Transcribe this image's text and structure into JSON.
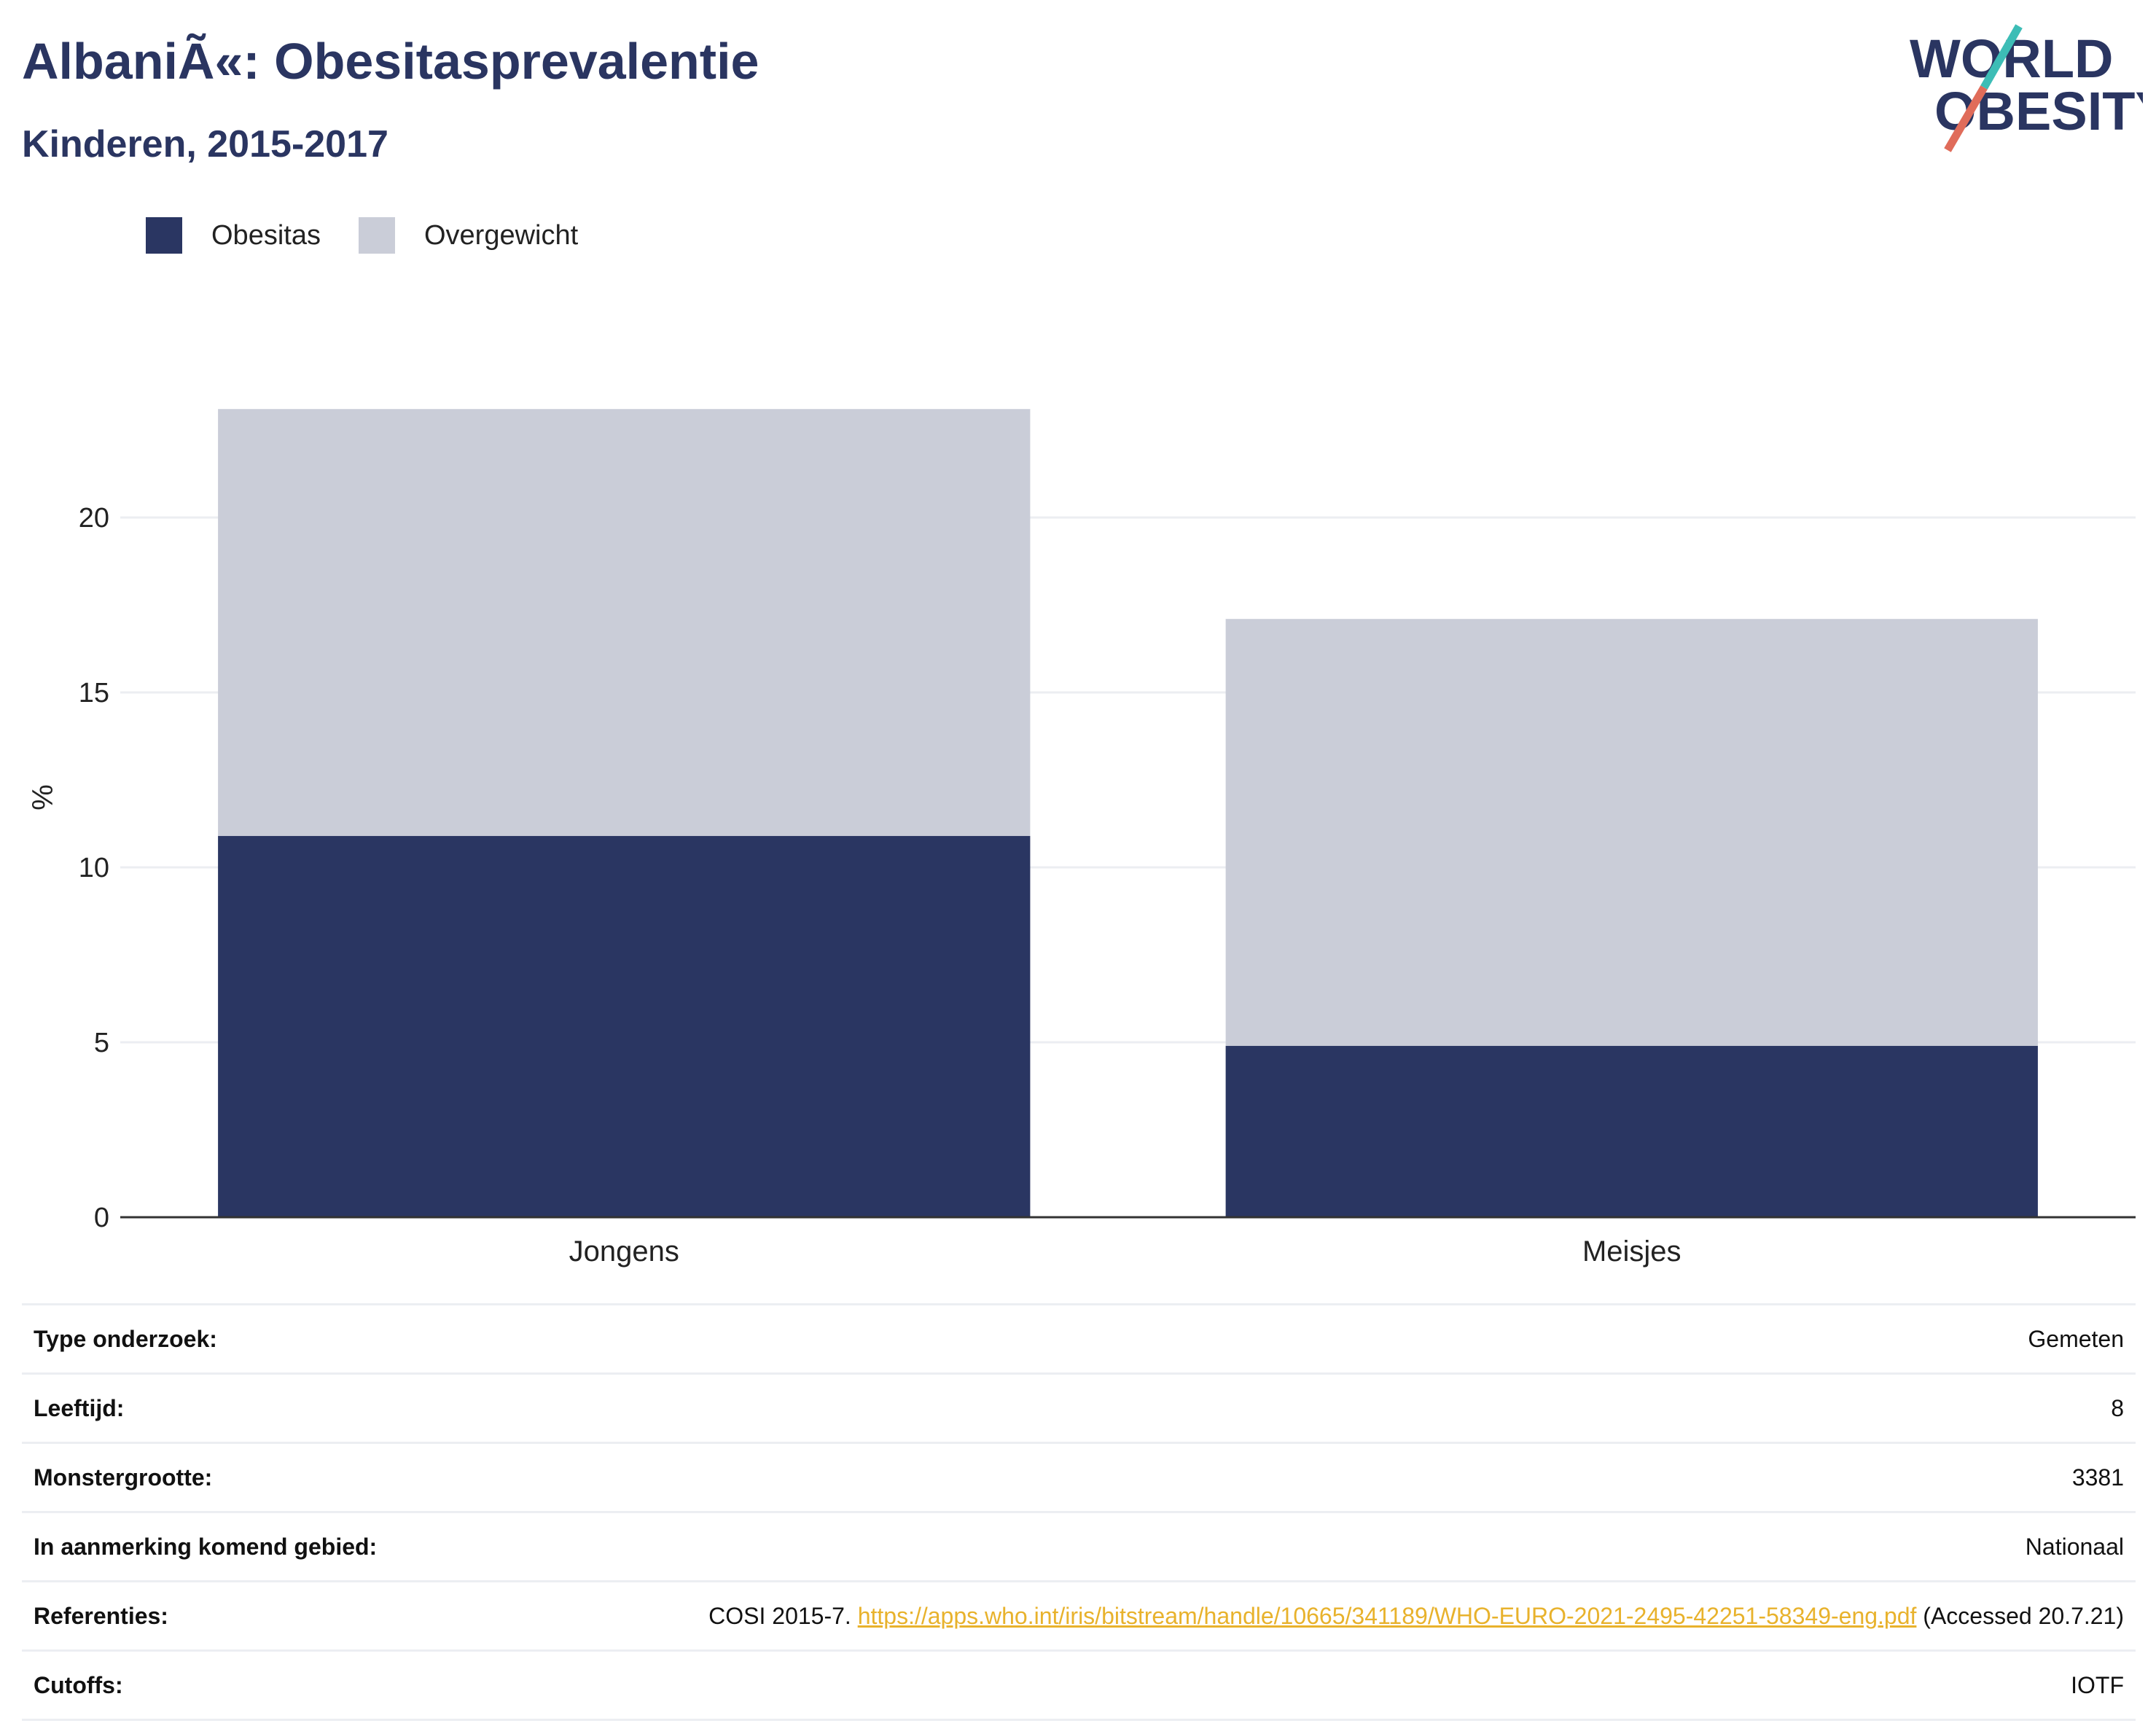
{
  "header": {
    "title": "AlbaniÃ«: Obesitasprevalentie",
    "subtitle": "Kinderen, 2015-2017"
  },
  "logo": {
    "line1": "WORLD",
    "line2": "OBESITY",
    "text_color": "#2a3561",
    "slash_top_color": "#3dbdb6",
    "slash_bottom_color": "#e06c5a"
  },
  "legend": [
    {
      "label": "Obesitas",
      "color": "#2a3662"
    },
    {
      "label": "Overgewicht",
      "color": "#cacdd8"
    }
  ],
  "chart_data": {
    "type": "bar",
    "stacked": true,
    "categories": [
      "Jongens",
      "Meisjes"
    ],
    "series": [
      {
        "name": "Obesitas",
        "values": [
          10.9,
          4.9
        ],
        "color": "#2a3662"
      },
      {
        "name": "Overgewicht",
        "values": [
          12.2,
          12.2
        ],
        "color": "#cacdd8"
      }
    ],
    "ylabel": "%",
    "ylim": [
      0,
      24
    ],
    "yticks": [
      0,
      5,
      10,
      15,
      20
    ],
    "grid": true,
    "legend_position": "top-left"
  },
  "info": [
    {
      "key": "Type onderzoek:",
      "value": "Gemeten"
    },
    {
      "key": "Leeftijd:",
      "value": "8"
    },
    {
      "key": "Monstergrootte:",
      "value": "3381"
    },
    {
      "key": "In aanmerking komend gebied:",
      "value": "Nationaal"
    },
    {
      "key": "Referenties:",
      "value_prefix": "COSI 2015-7. ",
      "link": "https://apps.who.int/iris/bitstream/handle/10665/341189/WHO-EURO-2021-2495-42251-58349-eng.pdf",
      "value_suffix": " (Accessed 20.7.21)"
    },
    {
      "key": "Cutoffs:",
      "value": "IOTF"
    }
  ]
}
